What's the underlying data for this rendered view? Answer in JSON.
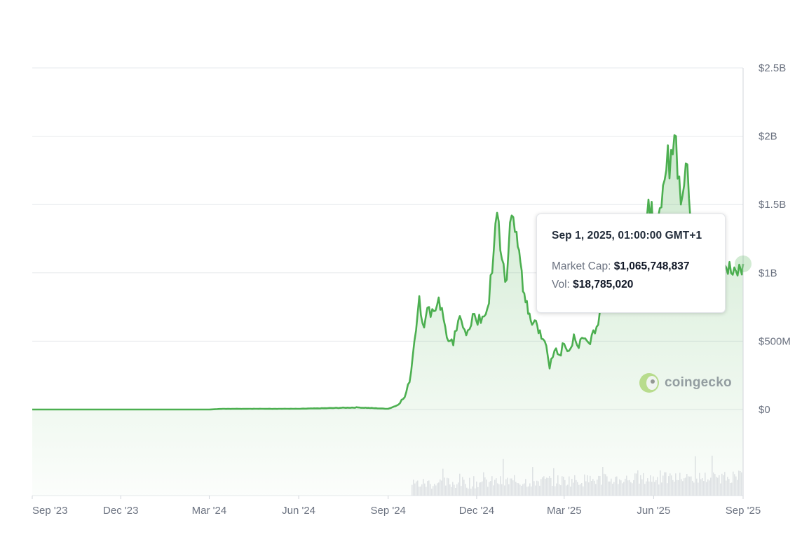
{
  "chart_data": {
    "type": "line",
    "title": "",
    "xlabel": "",
    "ylabel": "",
    "ylim": [
      0,
      2500000000
    ],
    "y_ticks": [
      {
        "value": 0,
        "label": "$0"
      },
      {
        "value": 500000000,
        "label": "$500M"
      },
      {
        "value": 1000000000,
        "label": "$1B"
      },
      {
        "value": 1500000000,
        "label": "$1.5B"
      },
      {
        "value": 2000000000,
        "label": "$2B"
      },
      {
        "value": 2500000000,
        "label": "$2.5B"
      }
    ],
    "x_ticks": [
      {
        "date": "2023-09-01",
        "label": "Sep '23"
      },
      {
        "date": "2023-12-01",
        "label": "Dec '23"
      },
      {
        "date": "2024-03-01",
        "label": "Mar '24"
      },
      {
        "date": "2024-06-01",
        "label": "Jun '24"
      },
      {
        "date": "2024-09-01",
        "label": "Sep '24"
      },
      {
        "date": "2024-12-01",
        "label": "Dec '24"
      },
      {
        "date": "2025-03-01",
        "label": "Mar '25"
      },
      {
        "date": "2025-06-01",
        "label": "Jun '25"
      },
      {
        "date": "2025-09-01",
        "label": "Sep '25"
      }
    ],
    "x_range": [
      "2023-09-01",
      "2025-09-01"
    ],
    "grid": "horizontal",
    "colors": {
      "line": "#4caf50",
      "area": "#4caf50",
      "volume": "#d9dbe1",
      "grid": "#e6e8ec",
      "axis_text": "#6b7280"
    },
    "series": [
      {
        "type": "line",
        "x": [
          "2023-09-01",
          "2023-12-01",
          "2024-03-01",
          "2024-03-15",
          "2024-06-01",
          "2024-07-01",
          "2024-08-01",
          "2024-09-01",
          "2024-09-10",
          "2024-09-18",
          "2024-09-23",
          "2024-09-28",
          "2024-10-03",
          "2024-10-08",
          "2024-10-13",
          "2024-10-18",
          "2024-10-23",
          "2024-10-28",
          "2024-11-02",
          "2024-11-07",
          "2024-11-12",
          "2024-11-17",
          "2024-11-22",
          "2024-11-27",
          "2024-12-02",
          "2024-12-07",
          "2024-12-12",
          "2024-12-17",
          "2024-12-22",
          "2024-12-27",
          "2025-01-01",
          "2025-01-06",
          "2025-01-11",
          "2025-01-15",
          "2025-01-19",
          "2025-01-23",
          "2025-01-27",
          "2025-01-31",
          "2025-02-04",
          "2025-02-09",
          "2025-02-14",
          "2025-02-19",
          "2025-02-24",
          "2025-03-01",
          "2025-03-06",
          "2025-03-11",
          "2025-03-16",
          "2025-03-21",
          "2025-03-26",
          "2025-03-31",
          "2025-04-05",
          "2025-04-10",
          "2025-04-15",
          "2025-04-20",
          "2025-04-25",
          "2025-04-30",
          "2025-05-05",
          "2025-05-10",
          "2025-05-15",
          "2025-05-20",
          "2025-05-25",
          "2025-05-30",
          "2025-06-04",
          "2025-06-09",
          "2025-06-14",
          "2025-06-19",
          "2025-06-24",
          "2025-06-29",
          "2025-07-04",
          "2025-07-09",
          "2025-07-14",
          "2025-07-19",
          "2025-07-24",
          "2025-07-29",
          "2025-08-03",
          "2025-08-08",
          "2025-08-13",
          "2025-08-18",
          "2025-08-23",
          "2025-08-28",
          "2025-09-01"
        ],
        "y": [
          0,
          0,
          0,
          5000000,
          5000000,
          10000000,
          15000000,
          5000000,
          30000000,
          90000000,
          200000000,
          500000000,
          830000000,
          600000000,
          750000000,
          720000000,
          820000000,
          660000000,
          500000000,
          470000000,
          650000000,
          600000000,
          580000000,
          700000000,
          620000000,
          680000000,
          740000000,
          1000000000,
          1440000000,
          1100000000,
          950000000,
          1420000000,
          1300000000,
          1080000000,
          850000000,
          700000000,
          620000000,
          650000000,
          580000000,
          500000000,
          300000000,
          430000000,
          400000000,
          480000000,
          430000000,
          550000000,
          450000000,
          520000000,
          490000000,
          580000000,
          620000000,
          980000000,
          1300000000,
          1200000000,
          1100000000,
          1050000000,
          1300000000,
          1150000000,
          1250000000,
          1100000000,
          1400000000,
          1520000000,
          1200000000,
          1480000000,
          1750000000,
          1900000000,
          2000000000,
          1500000000,
          1800000000,
          1380000000,
          1250000000,
          1400000000,
          1300000000,
          1200000000,
          1100000000,
          1180000000,
          1060000000,
          1080000000,
          1040000000,
          1060000000,
          1065748837
        ]
      }
    ],
    "tooltip": {
      "date": "Sep 1, 2025, 01:00:00 GMT+1",
      "market_cap_label": "Market Cap:",
      "market_cap_value": "$1,065,748,837",
      "vol_label": "Vol:",
      "vol_value": "$18,785,020"
    },
    "watermark": "coingecko"
  }
}
